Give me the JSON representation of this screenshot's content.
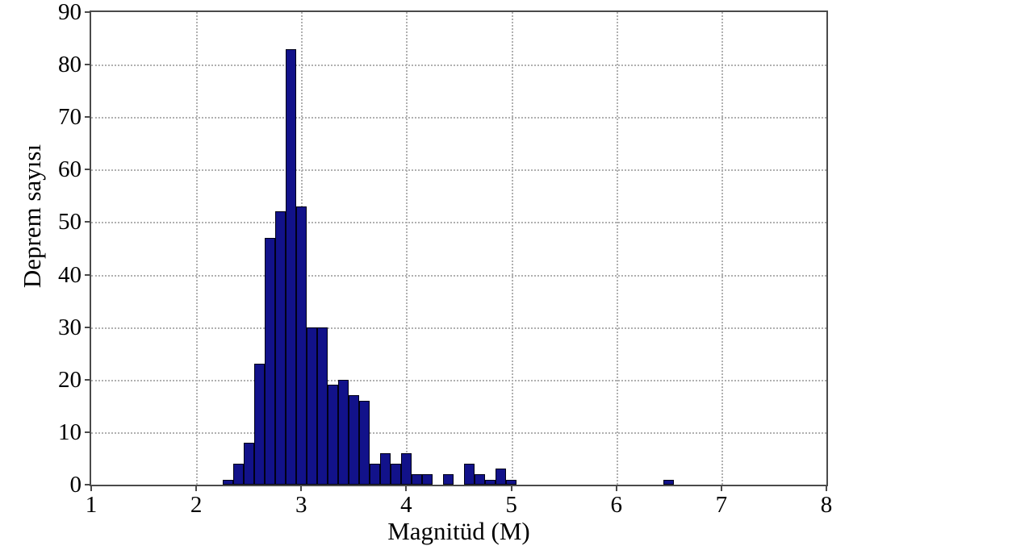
{
  "figure": {
    "background": "#ffffff",
    "frame_color": "#4a4a4a",
    "grid_color": "#b0b0b0",
    "text_color": "#000000"
  },
  "chart_data": {
    "type": "bar",
    "title": "",
    "xlabel": "Magnitüd (M)",
    "ylabel": "Deprem sayısı",
    "xlim": [
      1,
      8
    ],
    "ylim": [
      0,
      90
    ],
    "x_ticks": [
      1,
      2,
      3,
      4,
      5,
      6,
      7,
      8
    ],
    "y_ticks": [
      0,
      10,
      20,
      30,
      40,
      50,
      60,
      70,
      80,
      90
    ],
    "grid": "dotted, on all major ticks",
    "legend": "none",
    "bin_width": 0.1,
    "bar_color": "#12128a",
    "bar_edge_color": "#000016",
    "bars": [
      {
        "magnitude": 2.3,
        "count": 1
      },
      {
        "magnitude": 2.4,
        "count": 4
      },
      {
        "magnitude": 2.5,
        "count": 8
      },
      {
        "magnitude": 2.6,
        "count": 23
      },
      {
        "magnitude": 2.7,
        "count": 47
      },
      {
        "magnitude": 2.8,
        "count": 52
      },
      {
        "magnitude": 2.9,
        "count": 83
      },
      {
        "magnitude": 3.0,
        "count": 53
      },
      {
        "magnitude": 3.1,
        "count": 30
      },
      {
        "magnitude": 3.2,
        "count": 30
      },
      {
        "magnitude": 3.3,
        "count": 19
      },
      {
        "magnitude": 3.4,
        "count": 20
      },
      {
        "magnitude": 3.5,
        "count": 17
      },
      {
        "magnitude": 3.6,
        "count": 16
      },
      {
        "magnitude": 3.7,
        "count": 4
      },
      {
        "magnitude": 3.8,
        "count": 6
      },
      {
        "magnitude": 3.9,
        "count": 4
      },
      {
        "magnitude": 4.0,
        "count": 6
      },
      {
        "magnitude": 4.1,
        "count": 2
      },
      {
        "magnitude": 4.2,
        "count": 2
      },
      {
        "magnitude": 4.4,
        "count": 2
      },
      {
        "magnitude": 4.6,
        "count": 4
      },
      {
        "magnitude": 4.7,
        "count": 2
      },
      {
        "magnitude": 4.8,
        "count": 1
      },
      {
        "magnitude": 4.9,
        "count": 3
      },
      {
        "magnitude": 5.0,
        "count": 1
      },
      {
        "magnitude": 6.5,
        "count": 1
      }
    ]
  }
}
